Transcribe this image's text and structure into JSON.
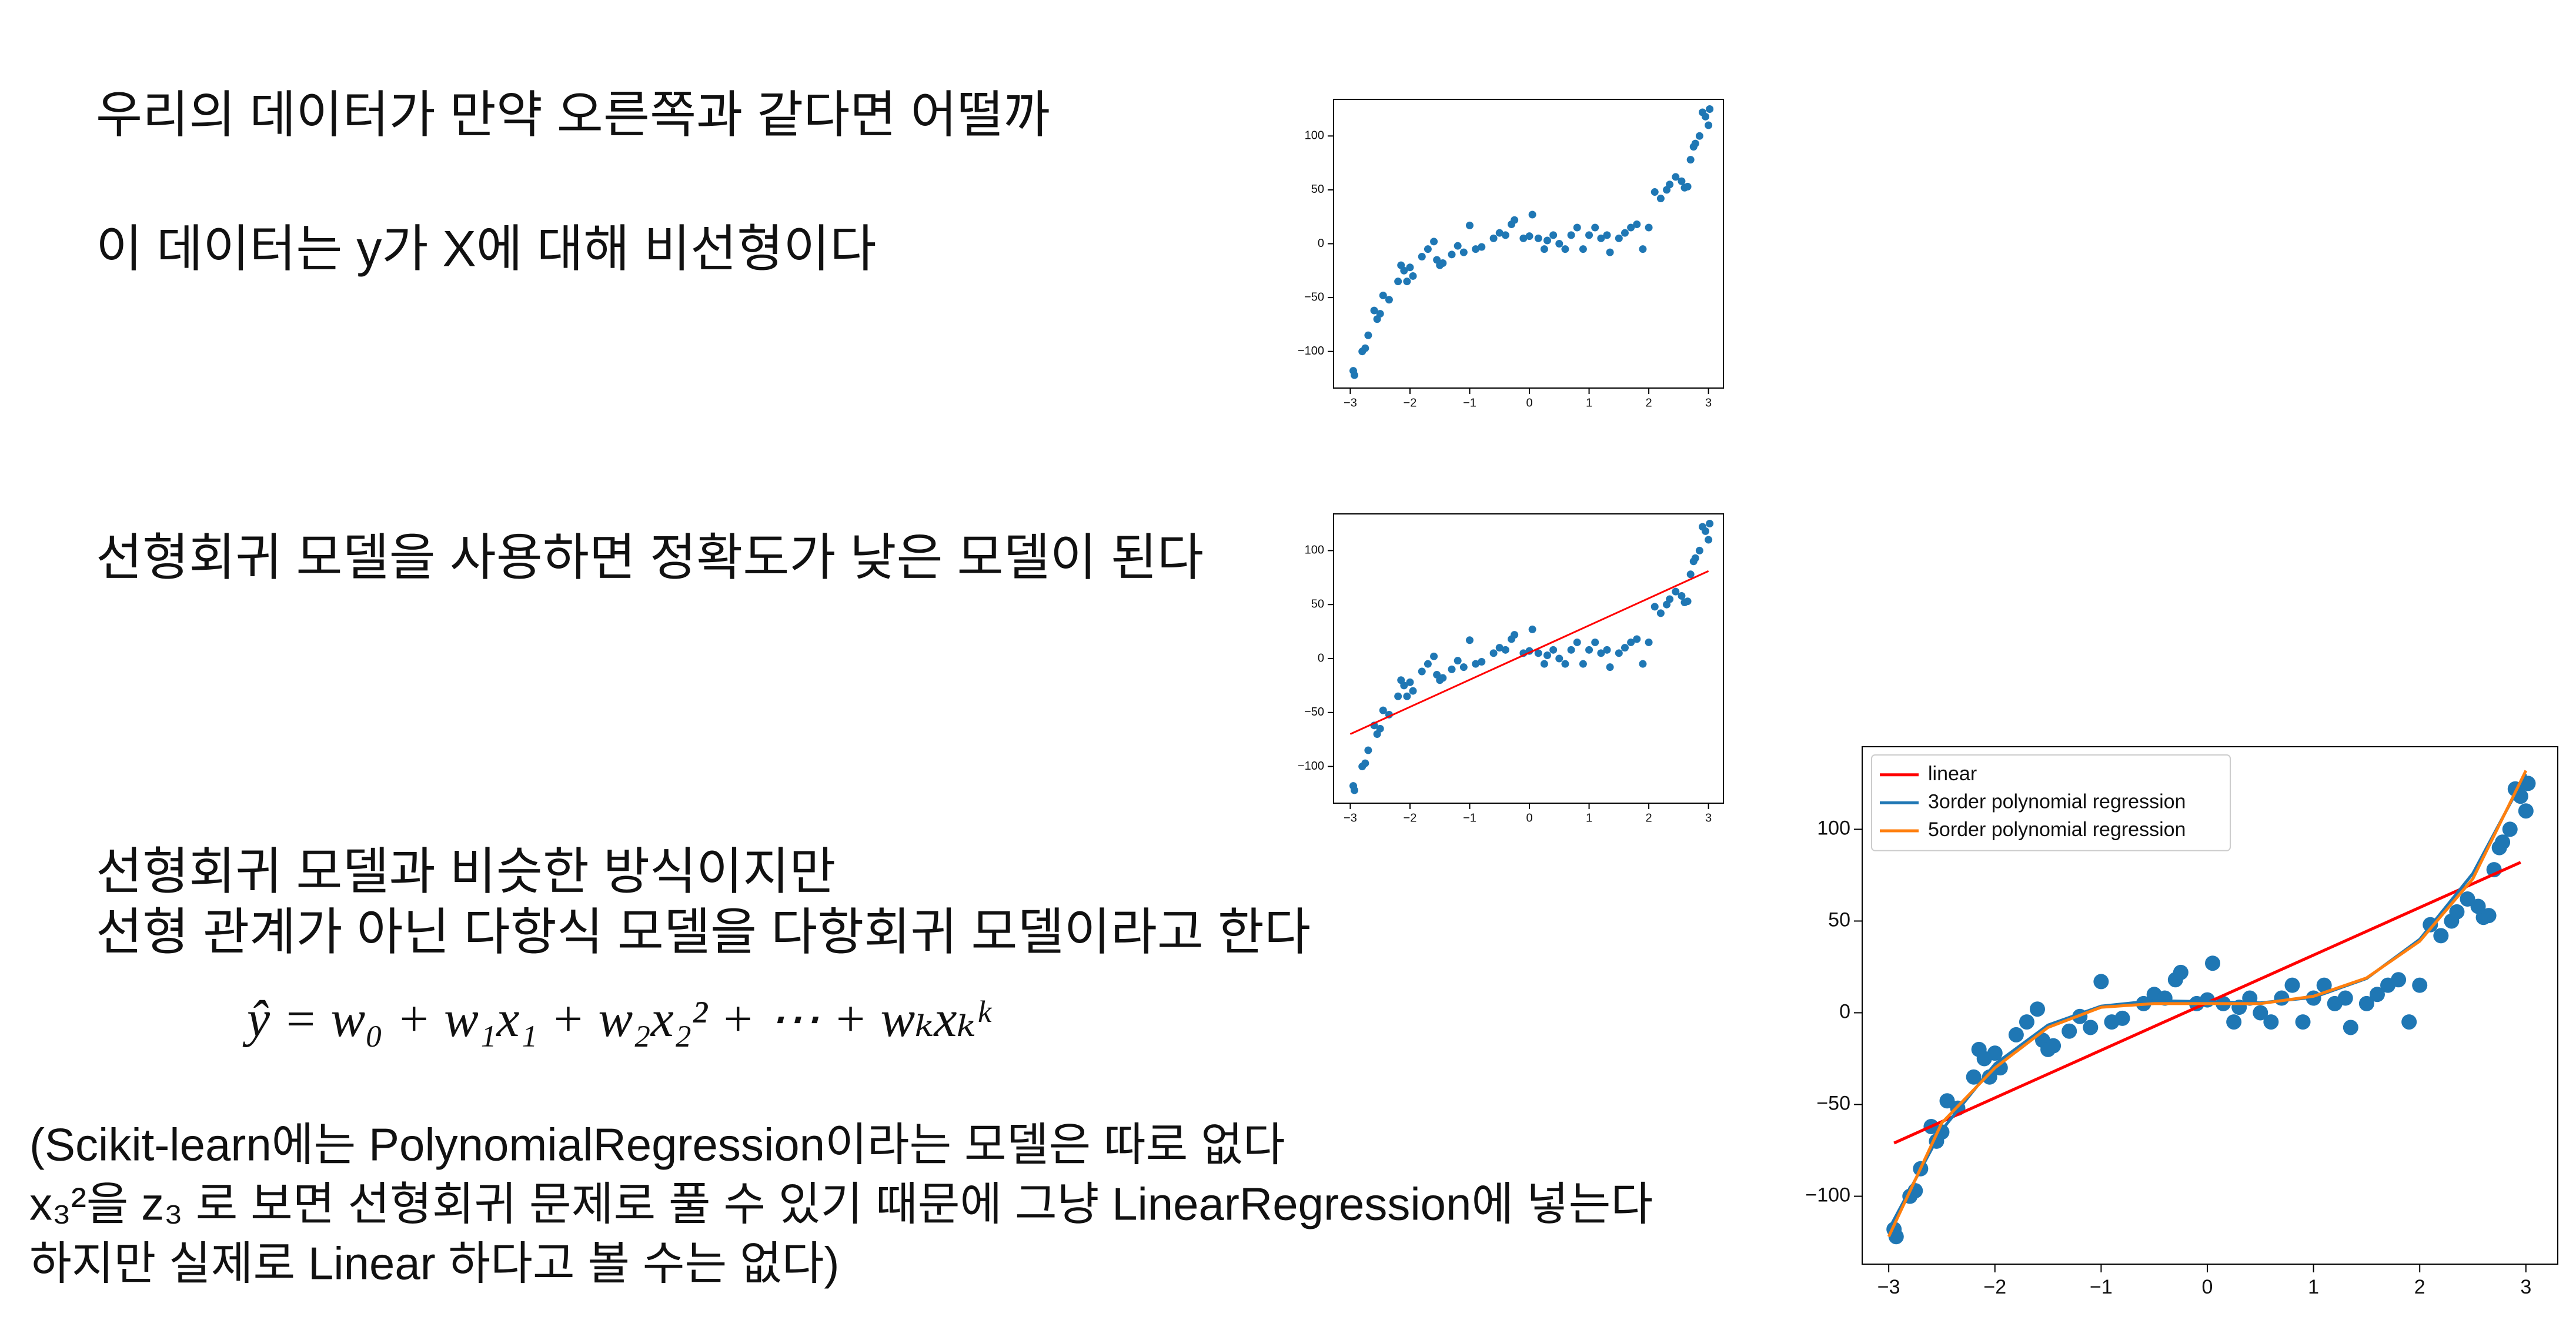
{
  "texts": [
    "우리의 데이터가 만약 오른쪽과 같다면 어떨까",
    "이 데이터는 y가 X에 대해 비선형이다",
    "선형회귀 모델을 사용하면 정확도가 낮은 모델이 된다",
    "선형회귀 모델과 비슷한 방식이지만",
    "선형 관계가 아닌 다항식 모델을 다항회귀 모델이라고 한다",
    "ŷ = w₀ + w₁x₁ + w₂x₂² + ⋯ + wₖxₖᵏ",
    "(Scikit-learn에는 PolynomialRegression이라는 모델은 따로 없다",
    "x₃²을 z₃ 로 보면 선형회귀 문제로 풀 수 있기 때문에 그냥 LinearRegression에 넣는다",
    "하지만 실제로 Linear 하다고 볼 수는 없다)"
  ],
  "chart_data": [
    {
      "type": "scatter",
      "color": "#1f77b4",
      "x": [
        -2.95,
        -2.93,
        -2.8,
        -2.75,
        -2.7,
        -2.6,
        -2.55,
        -2.5,
        -2.45,
        -2.35,
        -2.2,
        -2.15,
        -2.1,
        -2.05,
        -2.0,
        -1.95,
        -1.8,
        -1.7,
        -1.6,
        -1.55,
        -1.5,
        -1.45,
        -1.3,
        -1.2,
        -1.1,
        -1.0,
        -0.9,
        -0.8,
        -0.6,
        -0.5,
        -0.4,
        -0.3,
        -0.25,
        -0.1,
        0,
        0.05,
        0.15,
        0.25,
        0.3,
        0.4,
        0.5,
        0.6,
        0.7,
        0.8,
        0.9,
        1.0,
        1.1,
        1.2,
        1.3,
        1.35,
        1.5,
        1.6,
        1.7,
        1.8,
        1.9,
        2.0,
        2.1,
        2.2,
        2.3,
        2.35,
        2.45,
        2.55,
        2.6,
        2.65,
        2.7,
        2.75,
        2.78,
        2.85,
        2.9,
        2.95,
        3.0,
        3.02
      ],
      "values": [
        -118,
        -122,
        -100,
        -97,
        -85,
        -62,
        -70,
        -65,
        -48,
        -52,
        -35,
        -20,
        -25,
        -35,
        -22,
        -30,
        -12,
        -5,
        2,
        -15,
        -20,
        -18,
        -10,
        -2,
        -8,
        17,
        -5,
        -3,
        5,
        10,
        8,
        18,
        22,
        5,
        7,
        27,
        5,
        -5,
        3,
        8,
        0,
        -5,
        8,
        15,
        -5,
        8,
        15,
        5,
        8,
        -8,
        5,
        10,
        15,
        18,
        -5,
        15,
        48,
        42,
        50,
        55,
        62,
        58,
        52,
        53,
        78,
        90,
        93,
        100,
        122,
        118,
        110,
        125
      ],
      "xlim": [
        -3.28,
        3.25
      ],
      "ylim": [
        -134,
        134
      ],
      "xticks": [
        {
          "value": -3,
          "label": "−3"
        },
        {
          "value": -2,
          "label": "−2"
        },
        {
          "value": -1,
          "label": "−1"
        },
        0,
        1,
        2,
        3
      ],
      "yticks": [
        {
          "value": -100,
          "label": "−100"
        },
        {
          "value": -50,
          "label": "−50"
        },
        0,
        50,
        100
      ]
    },
    {
      "type": "scatter",
      "color": "#1f77b4",
      "x": [
        -2.95,
        -2.93,
        -2.8,
        -2.75,
        -2.7,
        -2.6,
        -2.55,
        -2.5,
        -2.45,
        -2.35,
        -2.2,
        -2.15,
        -2.1,
        -2.05,
        -2.0,
        -1.95,
        -1.8,
        -1.7,
        -1.6,
        -1.55,
        -1.5,
        -1.45,
        -1.3,
        -1.2,
        -1.1,
        -1.0,
        -0.9,
        -0.8,
        -0.6,
        -0.5,
        -0.4,
        -0.3,
        -0.25,
        -0.1,
        0,
        0.05,
        0.15,
        0.25,
        0.3,
        0.4,
        0.5,
        0.6,
        0.7,
        0.8,
        0.9,
        1.0,
        1.1,
        1.2,
        1.3,
        1.35,
        1.5,
        1.6,
        1.7,
        1.8,
        1.9,
        2.0,
        2.1,
        2.2,
        2.3,
        2.35,
        2.45,
        2.55,
        2.6,
        2.65,
        2.7,
        2.75,
        2.78,
        2.85,
        2.9,
        2.95,
        3.0,
        3.02
      ],
      "values": [
        -118,
        -122,
        -100,
        -97,
        -85,
        -62,
        -70,
        -65,
        -48,
        -52,
        -35,
        -20,
        -25,
        -35,
        -22,
        -30,
        -12,
        -5,
        2,
        -15,
        -20,
        -18,
        -10,
        -2,
        -8,
        17,
        -5,
        -3,
        5,
        10,
        8,
        18,
        22,
        5,
        7,
        27,
        5,
        -5,
        3,
        8,
        0,
        -5,
        8,
        15,
        -5,
        8,
        15,
        5,
        8,
        -8,
        5,
        10,
        15,
        18,
        -5,
        15,
        48,
        42,
        50,
        55,
        62,
        58,
        52,
        53,
        78,
        90,
        93,
        100,
        122,
        118,
        110,
        125
      ],
      "series": [
        {
          "color": "#ff0000",
          "x": [
            -3,
            3
          ],
          "values": [
            -70,
            81
          ]
        }
      ],
      "xlim": [
        -3.28,
        3.25
      ],
      "ylim": [
        -134,
        134
      ],
      "xticks": [
        {
          "value": -3,
          "label": "−3"
        },
        {
          "value": -2,
          "label": "−2"
        },
        {
          "value": -1,
          "label": "−1"
        },
        0,
        1,
        2,
        3
      ],
      "yticks": [
        {
          "value": -100,
          "label": "−100"
        },
        {
          "value": -50,
          "label": "−50"
        },
        0,
        50,
        100
      ]
    },
    {
      "type": "scatter",
      "color": "#1f77b4",
      "legend": "upper left",
      "x": [
        -2.95,
        -2.93,
        -2.8,
        -2.75,
        -2.7,
        -2.6,
        -2.55,
        -2.5,
        -2.45,
        -2.35,
        -2.2,
        -2.15,
        -2.1,
        -2.05,
        -2.0,
        -1.95,
        -1.8,
        -1.7,
        -1.6,
        -1.55,
        -1.5,
        -1.45,
        -1.3,
        -1.2,
        -1.1,
        -1.0,
        -0.9,
        -0.8,
        -0.6,
        -0.5,
        -0.4,
        -0.3,
        -0.25,
        -0.1,
        0,
        0.05,
        0.15,
        0.25,
        0.3,
        0.4,
        0.5,
        0.6,
        0.7,
        0.8,
        0.9,
        1.0,
        1.1,
        1.2,
        1.3,
        1.35,
        1.5,
        1.6,
        1.7,
        1.8,
        1.9,
        2.0,
        2.1,
        2.2,
        2.3,
        2.35,
        2.45,
        2.55,
        2.6,
        2.65,
        2.7,
        2.75,
        2.78,
        2.85,
        2.9,
        2.95,
        3.0,
        3.02
      ],
      "values": [
        -118,
        -122,
        -100,
        -97,
        -85,
        -62,
        -70,
        -65,
        -48,
        -52,
        -35,
        -20,
        -25,
        -35,
        -22,
        -30,
        -12,
        -5,
        2,
        -15,
        -20,
        -18,
        -10,
        -2,
        -8,
        17,
        -5,
        -3,
        5,
        10,
        8,
        18,
        22,
        5,
        7,
        27,
        5,
        -5,
        3,
        8,
        0,
        -5,
        8,
        15,
        -5,
        8,
        15,
        5,
        8,
        -8,
        5,
        10,
        15,
        18,
        -5,
        15,
        48,
        42,
        50,
        55,
        62,
        58,
        52,
        53,
        78,
        90,
        93,
        100,
        122,
        118,
        110,
        125
      ],
      "series": [
        {
          "name": "linear",
          "color": "#ff0000",
          "x": [
            -2.95,
            2.95
          ],
          "values": [
            -71,
            82
          ]
        },
        {
          "name": "3order polynomial regression",
          "color": "#1f77b4",
          "x": [
            -3,
            -2.5,
            -2,
            -1.5,
            -1,
            -0.5,
            0,
            0.5,
            1,
            1.5,
            2,
            2.5,
            3
          ],
          "values": [
            -118.1,
            -63.9,
            -28,
            -6.7,
            3.6,
            6.6,
            6,
            5.4,
            8.4,
            18.7,
            40,
            75.9,
            130.1
          ]
        },
        {
          "name": "5order polynomial regression",
          "color": "#ff7f0e",
          "x": [
            -3,
            -2.5,
            -2,
            -1.5,
            -1,
            -0.5,
            0,
            0.5,
            1,
            1.5,
            2,
            2.5,
            3
          ],
          "values": [
            -122,
            -60,
            -30,
            -8,
            3,
            5,
            5,
            5,
            9,
            19,
            39,
            73,
            132
          ]
        }
      ],
      "xlim": [
        -3.25,
        3.3
      ],
      "ylim": [
        -137,
        145
      ],
      "xticks": [
        {
          "value": -3,
          "label": "−3"
        },
        {
          "value": -2,
          "label": "−2"
        },
        {
          "value": -1,
          "label": "−1"
        },
        0,
        1,
        2,
        3
      ],
      "yticks": [
        {
          "value": -100,
          "label": "−100"
        },
        {
          "value": -50,
          "label": "−50"
        },
        0,
        50,
        100
      ]
    }
  ]
}
